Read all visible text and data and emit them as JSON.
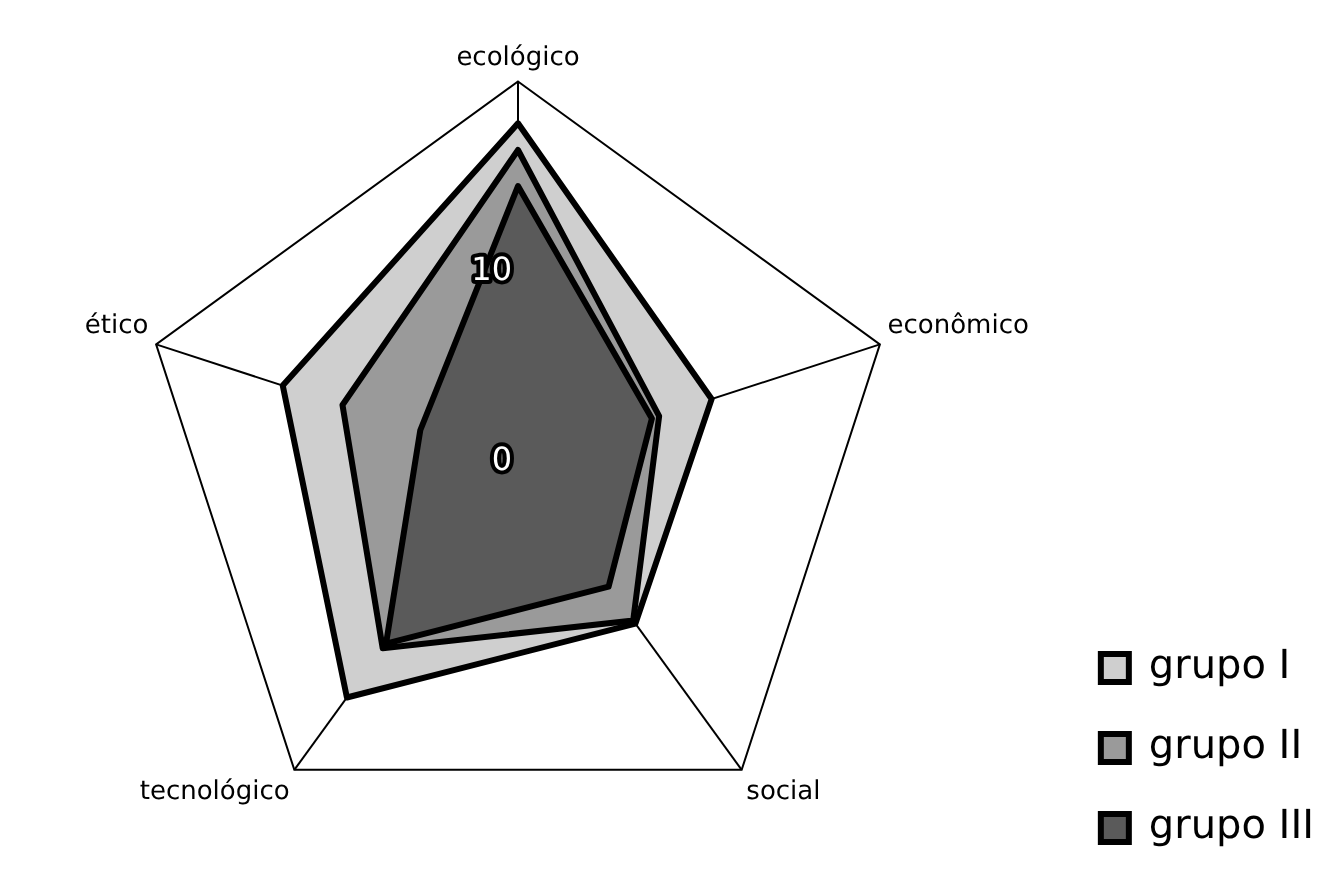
{
  "chart_data": {
    "type": "radar",
    "categories": [
      "ecológico",
      "econômico",
      "social",
      "tecnológico",
      "ético"
    ],
    "series": [
      {
        "name": "grupo I",
        "color": "#cfcfcf",
        "values": [
          17.8,
          10.7,
          10.5,
          15.3,
          13.0
        ]
      },
      {
        "name": "grupo II",
        "color": "#9a9a9a",
        "values": [
          16.4,
          7.8,
          10.3,
          12.1,
          9.7
        ]
      },
      {
        "name": "grupo III",
        "color": "#5a5a5a",
        "values": [
          14.5,
          7.4,
          8.1,
          11.8,
          5.4
        ]
      }
    ],
    "ylim": [
      0,
      20
    ],
    "yticks": [
      0,
      10
    ],
    "legend": "bottom right",
    "marker": "none"
  }
}
